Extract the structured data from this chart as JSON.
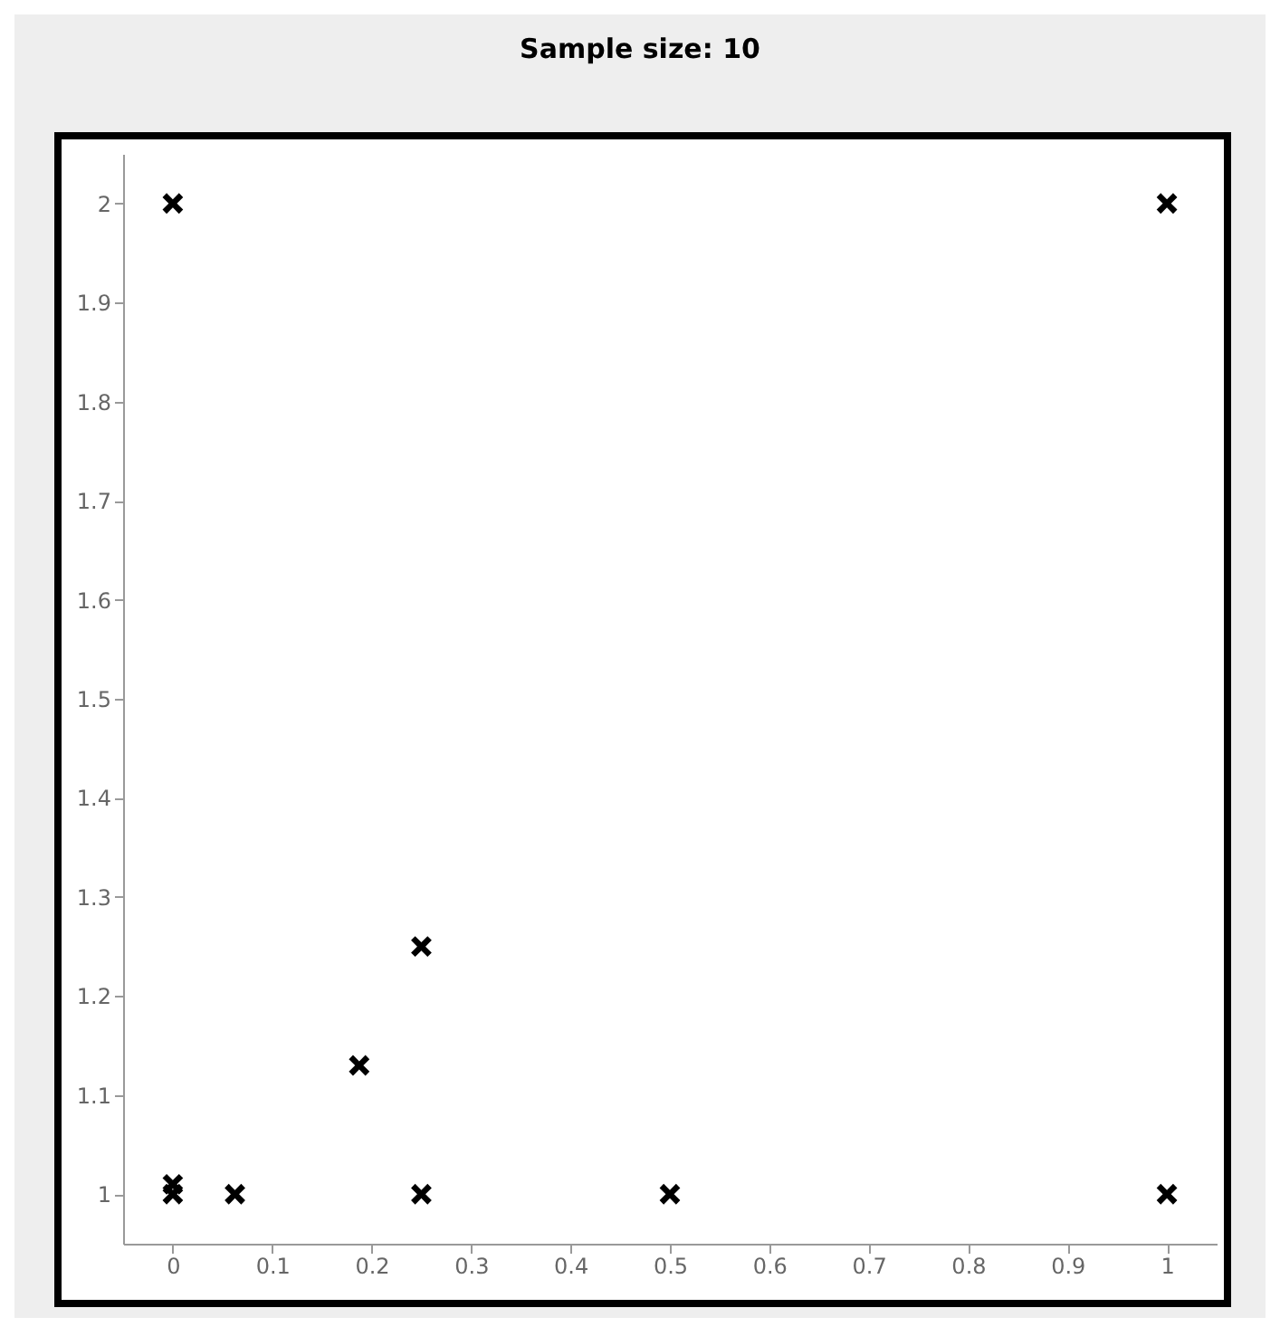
{
  "chart_data": {
    "type": "scatter",
    "title": "Sample size: 10",
    "x": [
      0,
      1,
      0.25,
      0.1875,
      0,
      0,
      0.0625,
      0.25,
      0.5,
      1
    ],
    "values": [
      2,
      2,
      1.25,
      1.13,
      1.01,
      1,
      1,
      1,
      1,
      1
    ],
    "color": "#000000",
    "marker": "cross",
    "grid": false,
    "xlim": [
      -0.05,
      1.05
    ],
    "xticks": [
      0,
      0.1,
      0.2,
      0.3,
      0.4,
      0.5,
      0.6,
      0.7,
      0.8,
      0.9,
      1
    ],
    "ylim": [
      0.95,
      2.05
    ],
    "yticks": [
      1,
      1.1,
      1.2,
      1.3,
      1.4,
      1.5,
      1.6,
      1.7,
      1.8,
      1.9,
      2
    ]
  }
}
